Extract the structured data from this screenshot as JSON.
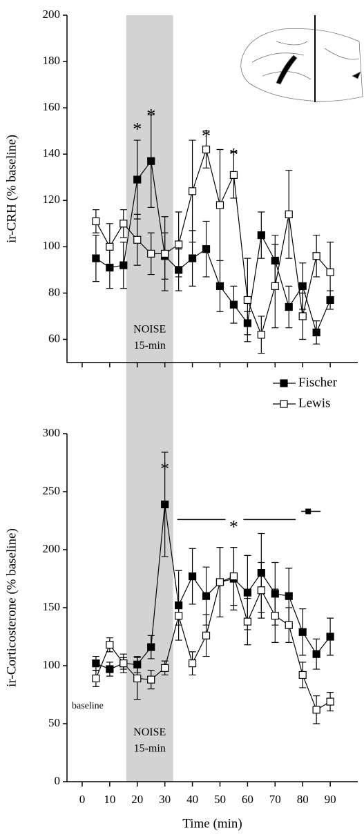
{
  "chart_data": [
    {
      "type": "line",
      "y_label": "ir-CRH (% baseline)",
      "x": [
        5,
        10,
        15,
        20,
        25,
        30,
        35,
        40,
        45,
        50,
        55,
        60,
        65,
        70,
        75,
        80,
        85,
        90
      ],
      "xlim": [
        -5.5,
        100
      ],
      "xticks": [
        0,
        10,
        20,
        30,
        40,
        50,
        60,
        70,
        80,
        90
      ],
      "show_xtick_labels": false,
      "ylim": [
        50,
        200
      ],
      "yticks": [
        60,
        80,
        100,
        120,
        140,
        160,
        180,
        200
      ],
      "shade_x": [
        16,
        33
      ],
      "series": [
        {
          "name": "Fischer",
          "color": "#000000",
          "marker": "filled",
          "values": [
            95,
            91,
            92,
            129,
            137,
            96,
            90,
            95,
            99,
            83,
            75,
            67,
            105,
            94,
            74,
            83,
            63,
            77
          ],
          "errors": [
            10,
            9,
            10,
            17,
            20,
            10,
            9,
            12,
            12,
            11,
            8,
            5,
            10,
            11,
            9,
            10,
            5,
            4
          ]
        },
        {
          "name": "Lewis",
          "color": "#000000",
          "marker": "open",
          "values": [
            111,
            100,
            110,
            103,
            97,
            97,
            101,
            124,
            142,
            118,
            131,
            77,
            62,
            83,
            114,
            70,
            96,
            89
          ],
          "errors": [
            5,
            10,
            6,
            11,
            9,
            16,
            14,
            22,
            8,
            24,
            10,
            18,
            8,
            18,
            19,
            10,
            9,
            13
          ]
        }
      ],
      "annotations": [
        {
          "text": "*",
          "x": 20,
          "y": 150
        },
        {
          "text": "*",
          "x": 25,
          "y": 156
        },
        {
          "text": "*",
          "x": 45,
          "y": 147
        },
        {
          "text": "*",
          "x": 55,
          "y": 139
        },
        {
          "text": "NOISE",
          "x": 24.5,
          "y": 64
        },
        {
          "text": "15-min",
          "x": 24.5,
          "y": 57
        }
      ]
    },
    {
      "type": "line",
      "x_label": "Time (min)",
      "y_label": "ir-Corticosterone (% baseline)",
      "x": [
        5,
        10,
        15,
        20,
        25,
        30,
        35,
        40,
        45,
        50,
        55,
        60,
        65,
        70,
        75,
        80,
        85,
        90
      ],
      "xlim": [
        -5.5,
        100
      ],
      "xticks": [
        0,
        10,
        20,
        30,
        40,
        50,
        60,
        70,
        80,
        90
      ],
      "show_xtick_labels": true,
      "ylim": [
        0,
        300
      ],
      "yticks": [
        0,
        50,
        100,
        150,
        200,
        250,
        300
      ],
      "shade_x": [
        16,
        33
      ],
      "legend": "top-right",
      "series": [
        {
          "name": "Fischer",
          "color": "#000000",
          "marker": "filled",
          "values": [
            102,
            97,
            102,
            101,
            116,
            239,
            152,
            177,
            160,
            172,
            175,
            163,
            180,
            162,
            160,
            129,
            110,
            125
          ],
          "errors": [
            6,
            6,
            5,
            7,
            10,
            45,
            30,
            24,
            25,
            30,
            27,
            32,
            34,
            27,
            24,
            20,
            13,
            16
          ]
        },
        {
          "name": "Lewis",
          "color": "#000000",
          "marker": "open",
          "values": [
            89,
            118,
            102,
            89,
            88,
            98,
            143,
            102,
            126,
            172,
            177,
            138,
            165,
            143,
            135,
            92,
            62,
            69
          ],
          "errors": [
            7,
            6,
            8,
            18,
            8,
            6,
            8,
            10,
            18,
            30,
            25,
            20,
            24,
            23,
            15,
            11,
            12,
            8
          ]
        }
      ],
      "annotations": [
        {
          "text": "*",
          "x": 30,
          "y": 268
        },
        {
          "text": "*",
          "x": 55,
          "y": 218
        },
        {
          "text": "baseline",
          "x": 2,
          "y": 65
        },
        {
          "text": "NOISE",
          "x": 24.5,
          "y": 42
        },
        {
          "text": "15-min",
          "x": 24.5,
          "y": 28
        }
      ]
    }
  ]
}
